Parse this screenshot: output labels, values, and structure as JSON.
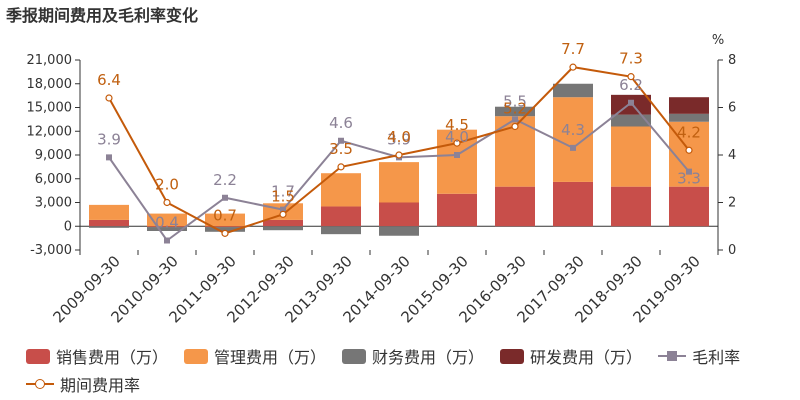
{
  "title": "季报期间费用及毛利率变化",
  "chart_data": {
    "type": "bar",
    "subtype": "stacked bar + line (dual axis)",
    "categories": [
      "2009-09-30",
      "2010-09-30",
      "2011-09-30",
      "2012-09-30",
      "2013-09-30",
      "2014-09-30",
      "2015-09-30",
      "2016-09-30",
      "2017-09-30",
      "2018-09-30",
      "2019-09-30"
    ],
    "left_axis": {
      "ticks": [
        "-3,000",
        "0",
        "3,000",
        "6,000",
        "9,000",
        "12,000",
        "15,000",
        "18,000",
        "21,000"
      ],
      "ylim": [
        -3000,
        21000
      ]
    },
    "right_axis": {
      "label": "%",
      "ticks": [
        "0",
        "2",
        "4",
        "6",
        "8"
      ],
      "ylim": [
        0,
        8
      ]
    },
    "series": [
      {
        "name": "销售费用（万）",
        "type": "bar",
        "color": "#c84e4a",
        "values": [
          800,
          -100,
          -100,
          800,
          2500,
          3000,
          4100,
          5000,
          5600,
          5000,
          5000
        ]
      },
      {
        "name": "管理费用（万）",
        "type": "bar",
        "color": "#f5974a",
        "values": [
          1900,
          1600,
          1600,
          2100,
          4200,
          5100,
          8100,
          8900,
          10700,
          7600,
          8200
        ]
      },
      {
        "name": "财务费用（万）",
        "type": "bar",
        "color": "#767676",
        "values": [
          -200,
          -500,
          -600,
          -500,
          -1000,
          -1200,
          0,
          1200,
          1700,
          1500,
          1000
        ]
      },
      {
        "name": "研发费用（万）",
        "type": "bar",
        "color": "#7a2a2a",
        "values": [
          0,
          0,
          0,
          0,
          0,
          0,
          0,
          0,
          0,
          2500,
          2100
        ]
      },
      {
        "name": "毛利率",
        "type": "line",
        "axis": "right",
        "color": "#8c8296",
        "label_color": "#8c8296",
        "marker": "square",
        "values": [
          3.9,
          0.4,
          2.2,
          1.7,
          4.6,
          3.9,
          4.0,
          5.5,
          4.3,
          6.2,
          3.3
        ],
        "labels": [
          "3.9",
          "0.4",
          "2.2",
          "1.7",
          "4.6",
          "3.9",
          "4.0",
          "5.5",
          "4.3",
          "6.2",
          "3.3"
        ]
      },
      {
        "name": "期间费用率",
        "type": "line",
        "axis": "right",
        "color": "#c45a0a",
        "label_color": "#c06010",
        "marker": "circle",
        "values": [
          6.4,
          2.0,
          0.7,
          1.5,
          3.5,
          4.0,
          4.5,
          5.2,
          7.7,
          7.3,
          4.2
        ],
        "labels": [
          "6.4",
          "2.0",
          "0.7",
          "1.5",
          "3.5",
          "4.0",
          "4.5",
          "5.2",
          "7.7",
          "7.3",
          "4.2"
        ]
      }
    ],
    "legend_position": "bottom",
    "grid": false
  },
  "legend": {
    "items": [
      {
        "label": "销售费用（万）",
        "color": "#c84e4a",
        "kind": "bar"
      },
      {
        "label": "管理费用（万）",
        "color": "#f5974a",
        "kind": "bar"
      },
      {
        "label": "财务费用（万）",
        "color": "#767676",
        "kind": "bar"
      },
      {
        "label": "研发费用（万）",
        "color": "#7a2a2a",
        "kind": "bar"
      },
      {
        "label": "毛利率",
        "color": "#8c8296",
        "kind": "line-square"
      },
      {
        "label": "期间费用率",
        "color": "#c45a0a",
        "kind": "line-circle"
      }
    ]
  }
}
